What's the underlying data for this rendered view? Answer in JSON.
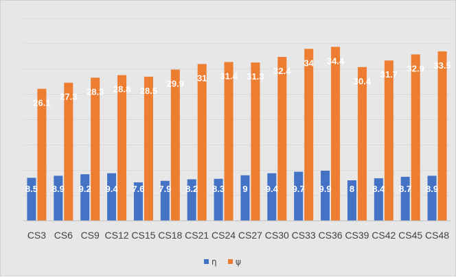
{
  "chart_data": {
    "type": "bar",
    "categories": [
      "CS3",
      "CS6",
      "CS9",
      "CS12",
      "CS15",
      "CS18",
      "CS21",
      "CS24",
      "CS27",
      "CS30",
      "CS33",
      "CS36",
      "CS39",
      "CS42",
      "CS45",
      "CS48"
    ],
    "series": [
      {
        "name": "η",
        "color": "#4472c4",
        "values": [
          8.5,
          8.9,
          9.2,
          9.4,
          7.6,
          7.9,
          8.2,
          8.3,
          9,
          9.4,
          9.7,
          9.9,
          8,
          8.4,
          8.7,
          8.9
        ]
      },
      {
        "name": "ψ",
        "color": "#ed7d31",
        "values": [
          26.1,
          27.3,
          28.3,
          28.8,
          28.5,
          29.9,
          31,
          31.4,
          31.3,
          32.4,
          34,
          34.4,
          30.4,
          31.7,
          32.9,
          33.5
        ]
      }
    ],
    "value_labels": {
      "η": [
        "8.5",
        "8.9",
        "9.2",
        "9.4",
        "7.6",
        "7.9",
        "8.2",
        "8.3",
        "9",
        "9.4",
        "9.7",
        "9.9",
        "8",
        "8.4",
        "8.7",
        "8.9"
      ],
      "ψ": [
        "26.1",
        "27.3",
        "28.3",
        "28.8",
        "28.5",
        "29.9",
        "31",
        "31.4",
        "31.3",
        "32.4",
        "34",
        "34.4",
        "30.4",
        "31.7",
        "32.9",
        "33.5"
      ]
    },
    "title": "",
    "xlabel": "",
    "ylabel": "",
    "ylim": [
      0,
      40
    ],
    "y_tick_labels_visible": false,
    "grid": true,
    "legend_position": "bottom",
    "background_color": "#e7e7e7",
    "gridline_color": "#d9d9d9",
    "axis_color": "#bfbfbf"
  }
}
